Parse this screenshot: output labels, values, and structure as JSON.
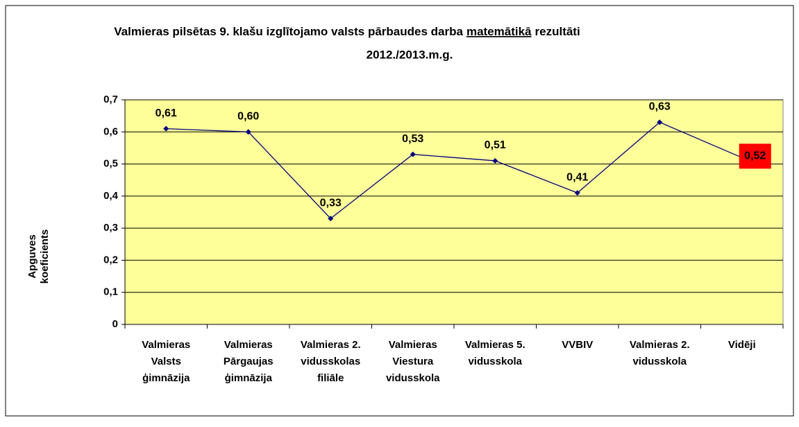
{
  "chart_data": {
    "type": "line",
    "title": [
      "Valmieras pilsētas 9. klašu izglītojamo valsts pārbaudes darba",
      "matemātikā",
      "rezultāti",
      "2012./2013.m.g."
    ],
    "y_label": [
      "Apguves",
      "koeficients"
    ],
    "categories": [
      [
        "Valmieras",
        "Valsts",
        "ģimnāzija"
      ],
      [
        "Valmieras",
        "Pārgaujas",
        "ģimnāzija"
      ],
      [
        "Valmieras 2.",
        "vidusskolas",
        "filiāle"
      ],
      [
        "Valmieras",
        "Viestura",
        "vidusskola"
      ],
      [
        "Valmieras 5.",
        "vidusskola"
      ],
      [
        "VVBIV"
      ],
      [
        "Valmieras 2.",
        "vidusskola"
      ],
      [
        "Vidēji"
      ]
    ],
    "values": [
      0.61,
      0.6,
      0.33,
      0.53,
      0.51,
      0.41,
      0.63,
      0.52
    ],
    "value_labels": [
      "0,61",
      "0,60",
      "0,33",
      "0,53",
      "0,51",
      "0,41",
      "0,63",
      "0,52"
    ],
    "color": "#000080",
    "plot_background": "#ffff99",
    "highlight": {
      "index": 7,
      "color": "#ff0000"
    },
    "ylim": [
      0,
      0.7
    ],
    "yticks": [
      0,
      {
        "value": 0.1,
        "label": "0,1"
      },
      {
        "value": 0.2,
        "label": "0,2"
      },
      {
        "value": 0.3,
        "label": "0,3"
      },
      {
        "value": 0.4,
        "label": "0,4"
      },
      {
        "value": 0.5,
        "label": "0,5"
      },
      {
        "value": 0.6,
        "label": "0,6"
      },
      {
        "value": 0.7,
        "label": "0,7"
      }
    ],
    "grid": true
  }
}
